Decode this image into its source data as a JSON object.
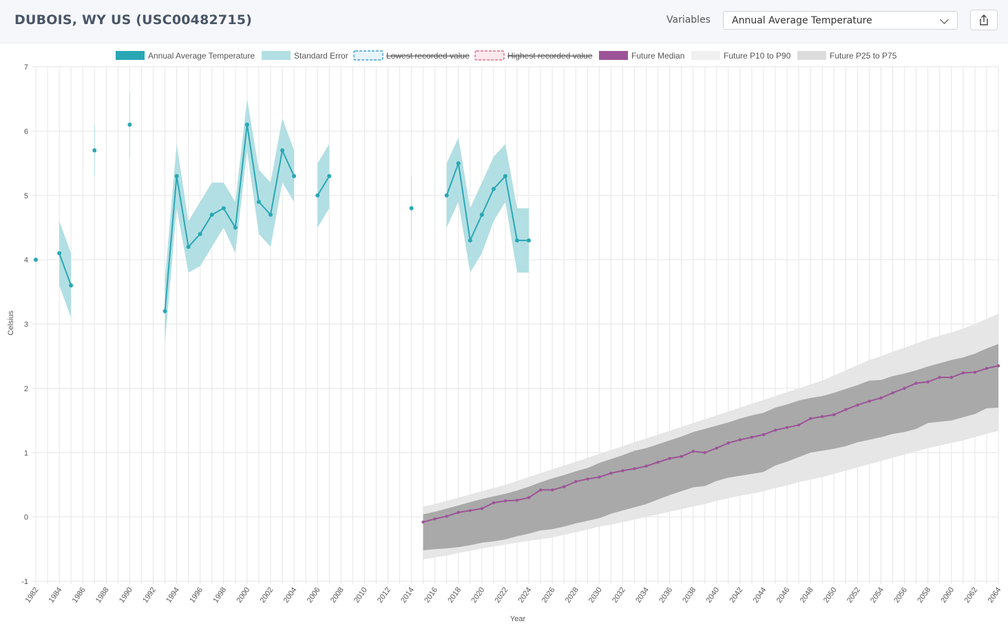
{
  "header": {
    "title": "DUBOIS, WY US (USC00482715)",
    "variables_label": "Variables",
    "selected_variable": "Annual Average Temperature"
  },
  "icons": {
    "share": "share-icon",
    "dropdown": "chevron-down-icon"
  },
  "colors": {
    "observed": "#2aa7b4",
    "standard_error": "#b2dfe3",
    "future_median": "#9c5497",
    "p10_p90": "#e6e6e6",
    "p25_p75": "#a9a9a9",
    "lowest": "#3ba0d9",
    "highest": "#e46b87"
  },
  "chart_data": {
    "type": "line",
    "xlabel": "Year",
    "ylabel": "Celsius",
    "xlim": [
      1982,
      2064
    ],
    "ylim": [
      -1,
      7
    ],
    "grid": true,
    "legend_position": "top",
    "x_ticks": [
      1982,
      1984,
      1986,
      1988,
      1990,
      1992,
      1994,
      1996,
      1998,
      2000,
      2002,
      2004,
      2006,
      2008,
      2010,
      2012,
      2014,
      2016,
      2018,
      2020,
      2022,
      2024,
      2026,
      2028,
      2030,
      2032,
      2034,
      2036,
      2038,
      2040,
      2042,
      2044,
      2046,
      2048,
      2050,
      2052,
      2054,
      2056,
      2058,
      2060,
      2062,
      2064
    ],
    "y_ticks": [
      -1,
      0,
      1,
      2,
      3,
      4,
      5,
      6,
      7
    ],
    "legend": [
      {
        "label": "Annual Average Temperature",
        "style": "solid",
        "hidden": false
      },
      {
        "label": "Standard Error",
        "style": "solid",
        "hidden": false
      },
      {
        "label": "Lowest recorded value",
        "style": "dashed",
        "hidden": true
      },
      {
        "label": "Highest recorded value",
        "style": "dashed",
        "hidden": true
      },
      {
        "label": "Future Median",
        "style": "solid",
        "hidden": false
      },
      {
        "label": "Future P10 to P90",
        "style": "solid",
        "hidden": false
      },
      {
        "label": "Future P25 to P75",
        "style": "solid",
        "hidden": false
      }
    ],
    "observed": {
      "name": "Annual Average Temperature",
      "x": [
        1982,
        1983,
        1984,
        1985,
        1986,
        1987,
        1988,
        1989,
        1990,
        1991,
        1992,
        1993,
        1994,
        1995,
        1996,
        1997,
        1998,
        1999,
        2000,
        2001,
        2002,
        2003,
        2004,
        2005,
        2006,
        2007,
        2008,
        2009,
        2010,
        2011,
        2012,
        2013,
        2014,
        2015,
        2016,
        2017,
        2018,
        2019,
        2020,
        2021,
        2022,
        2023,
        2024
      ],
      "y": [
        4.0,
        null,
        4.1,
        3.6,
        null,
        5.7,
        null,
        null,
        6.1,
        null,
        null,
        3.2,
        5.3,
        4.2,
        4.4,
        4.7,
        4.8,
        4.5,
        6.1,
        4.9,
        4.7,
        5.7,
        5.3,
        null,
        5.0,
        5.3,
        null,
        null,
        null,
        null,
        null,
        null,
        4.8,
        null,
        null,
        5.0,
        5.5,
        4.3,
        4.7,
        5.1,
        5.3,
        4.3,
        4.3
      ],
      "se_lower": [
        null,
        null,
        3.6,
        3.1,
        null,
        5.3,
        null,
        null,
        5.6,
        null,
        null,
        2.7,
        4.8,
        3.8,
        3.9,
        4.2,
        4.5,
        4.1,
        5.7,
        4.4,
        4.2,
        5.2,
        4.9,
        null,
        4.5,
        4.8,
        null,
        null,
        null,
        null,
        null,
        null,
        4.3,
        null,
        null,
        4.5,
        4.9,
        3.8,
        4.1,
        4.6,
        4.9,
        3.8,
        3.8
      ],
      "se_upper": [
        null,
        null,
        4.6,
        4.1,
        null,
        6.1,
        null,
        null,
        6.6,
        null,
        null,
        3.7,
        5.8,
        4.6,
        4.9,
        5.2,
        5.2,
        4.9,
        6.5,
        5.4,
        5.2,
        6.2,
        5.7,
        null,
        5.5,
        5.8,
        null,
        null,
        null,
        null,
        null,
        null,
        5.3,
        null,
        null,
        5.5,
        5.9,
        4.8,
        5.2,
        5.6,
        5.8,
        4.8,
        4.8
      ]
    },
    "future": {
      "x": [
        2015,
        2016,
        2017,
        2018,
        2019,
        2020,
        2021,
        2022,
        2023,
        2024,
        2025,
        2026,
        2027,
        2028,
        2029,
        2030,
        2031,
        2032,
        2033,
        2034,
        2035,
        2036,
        2037,
        2038,
        2039,
        2040,
        2041,
        2042,
        2043,
        2044,
        2045,
        2046,
        2047,
        2048,
        2049,
        2050,
        2051,
        2052,
        2053,
        2054,
        2055,
        2056,
        2057,
        2058,
        2059,
        2060,
        2061,
        2062,
        2063,
        2064
      ],
      "median": [
        -0.08,
        -0.03,
        0.01,
        0.07,
        0.1,
        0.13,
        0.22,
        0.25,
        0.26,
        0.3,
        0.42,
        0.42,
        0.47,
        0.55,
        0.59,
        0.62,
        0.68,
        0.72,
        0.75,
        0.79,
        0.85,
        0.91,
        0.94,
        1.02,
        1.0,
        1.07,
        1.15,
        1.2,
        1.24,
        1.28,
        1.35,
        1.39,
        1.43,
        1.53,
        1.56,
        1.59,
        1.67,
        1.74,
        1.8,
        1.85,
        1.93,
        2.0,
        2.08,
        2.1,
        2.17,
        2.17,
        2.24,
        2.25,
        2.31,
        2.35
      ],
      "p25": [
        -0.52,
        -0.5,
        -0.49,
        -0.47,
        -0.44,
        -0.4,
        -0.38,
        -0.35,
        -0.3,
        -0.26,
        -0.21,
        -0.19,
        -0.15,
        -0.1,
        -0.06,
        -0.02,
        0.05,
        0.1,
        0.15,
        0.2,
        0.27,
        0.34,
        0.4,
        0.46,
        0.48,
        0.56,
        0.61,
        0.64,
        0.67,
        0.7,
        0.8,
        0.86,
        0.93,
        1.0,
        1.03,
        1.06,
        1.1,
        1.16,
        1.2,
        1.24,
        1.29,
        1.32,
        1.37,
        1.46,
        1.48,
        1.5,
        1.55,
        1.6,
        1.69,
        1.7
      ],
      "p75": [
        0.04,
        0.08,
        0.13,
        0.18,
        0.23,
        0.28,
        0.32,
        0.36,
        0.41,
        0.47,
        0.54,
        0.6,
        0.65,
        0.71,
        0.76,
        0.84,
        0.9,
        0.96,
        1.03,
        1.07,
        1.13,
        1.19,
        1.25,
        1.32,
        1.37,
        1.42,
        1.47,
        1.53,
        1.58,
        1.62,
        1.7,
        1.75,
        1.81,
        1.85,
        1.88,
        1.93,
        1.99,
        2.05,
        2.12,
        2.13,
        2.19,
        2.23,
        2.28,
        2.34,
        2.39,
        2.44,
        2.48,
        2.54,
        2.62,
        2.69
      ],
      "p10": [
        -0.66,
        -0.63,
        -0.6,
        -0.56,
        -0.53,
        -0.49,
        -0.46,
        -0.43,
        -0.4,
        -0.37,
        -0.35,
        -0.32,
        -0.28,
        -0.24,
        -0.2,
        -0.15,
        -0.12,
        -0.08,
        -0.04,
        0.0,
        0.04,
        0.08,
        0.12,
        0.16,
        0.2,
        0.25,
        0.29,
        0.33,
        0.36,
        0.4,
        0.45,
        0.49,
        0.54,
        0.58,
        0.62,
        0.67,
        0.72,
        0.77,
        0.82,
        0.87,
        0.92,
        0.97,
        1.02,
        1.07,
        1.11,
        1.15,
        1.19,
        1.24,
        1.29,
        1.34
      ],
      "p90": [
        0.16,
        0.2,
        0.25,
        0.3,
        0.35,
        0.4,
        0.45,
        0.5,
        0.56,
        0.62,
        0.68,
        0.74,
        0.8,
        0.86,
        0.92,
        0.98,
        1.04,
        1.1,
        1.16,
        1.22,
        1.28,
        1.34,
        1.4,
        1.46,
        1.52,
        1.58,
        1.64,
        1.7,
        1.76,
        1.82,
        1.88,
        1.94,
        2.0,
        2.06,
        2.12,
        2.2,
        2.28,
        2.36,
        2.44,
        2.5,
        2.57,
        2.63,
        2.7,
        2.76,
        2.82,
        2.87,
        2.93,
        3.0,
        3.08,
        3.16
      ]
    }
  }
}
